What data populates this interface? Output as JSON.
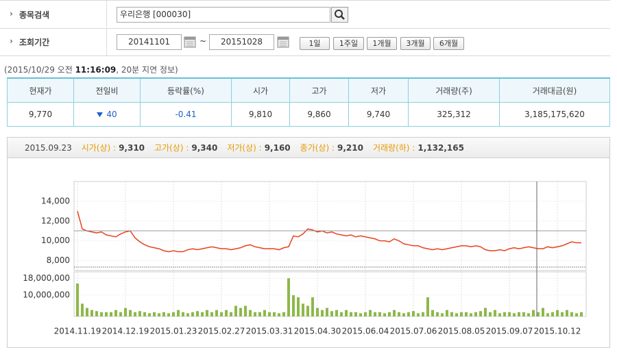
{
  "search": {
    "label": "종목검색",
    "value": "우리은행 [000030]"
  },
  "period": {
    "label": "조회기간",
    "start": "20141101",
    "separator": "~",
    "end": "20151028",
    "buttons": [
      "1일",
      "1주일",
      "1개월",
      "3개월",
      "6개월"
    ]
  },
  "quote_time": {
    "prefix": "(2015/10/29 오전",
    "time": "11:16:09",
    "suffix": ", 20분 지연 정보)"
  },
  "table": {
    "headers": [
      "현재가",
      "전일비",
      "등락률(%)",
      "시가",
      "고가",
      "저가",
      "거래량(주)",
      "거래대금(원)"
    ],
    "rows": [
      [
        "9,770",
        "40",
        "-0.41",
        "9,810",
        "9,860",
        "9,740",
        "325,312",
        "3,185,175,620"
      ]
    ]
  },
  "chart_header": {
    "date": "2015.09.23",
    "items": [
      {
        "label": "시가(상) :",
        "value": "9,310"
      },
      {
        "label": "고가(상) :",
        "value": "9,340"
      },
      {
        "label": "저가(상) :",
        "value": "9,160"
      },
      {
        "label": "종가(상) :",
        "value": "9,210"
      },
      {
        "label": "거래량(하) :",
        "value": "1,132,165"
      }
    ]
  },
  "chart_data": [
    {
      "type": "line",
      "color": "#e8401c",
      "grid": true,
      "categories": [
        "2014.11.19",
        null,
        null,
        null,
        null,
        null,
        null,
        null,
        null,
        null,
        "2014.12.19",
        null,
        null,
        null,
        null,
        null,
        null,
        null,
        null,
        null,
        "2015.01.23",
        null,
        null,
        null,
        null,
        null,
        null,
        null,
        null,
        null,
        "2015.02.27",
        null,
        null,
        null,
        null,
        null,
        null,
        null,
        null,
        null,
        "2015.03.31",
        null,
        null,
        null,
        null,
        null,
        null,
        null,
        null,
        null,
        "2015.04.30",
        null,
        null,
        null,
        null,
        null,
        null,
        null,
        null,
        null,
        "2015.06.04",
        null,
        null,
        null,
        null,
        null,
        null,
        null,
        null,
        null,
        "2015.07.06",
        null,
        null,
        null,
        null,
        null,
        null,
        null,
        null,
        null,
        "2015.08.05",
        null,
        null,
        null,
        null,
        null,
        null,
        null,
        null,
        null,
        "2015.09.07",
        null,
        null,
        null,
        null,
        null,
        null,
        null,
        null,
        null,
        "2015.10.12",
        null,
        null,
        null,
        null,
        null
      ],
      "values": [
        13000,
        11200,
        11000,
        10900,
        10800,
        10900,
        10600,
        10500,
        10400,
        10700,
        10900,
        11000,
        10300,
        9900,
        9600,
        9400,
        9300,
        9200,
        9000,
        8900,
        9000,
        8900,
        8900,
        9100,
        9200,
        9100,
        9200,
        9300,
        9400,
        9300,
        9200,
        9200,
        9100,
        9200,
        9300,
        9500,
        9600,
        9400,
        9300,
        9200,
        9200,
        9200,
        9100,
        9300,
        9400,
        10500,
        10400,
        10700,
        11200,
        11100,
        10900,
        11000,
        10800,
        10900,
        10700,
        10600,
        10500,
        10600,
        10400,
        10500,
        10400,
        10300,
        10200,
        10000,
        10000,
        9900,
        10200,
        10000,
        9700,
        9600,
        9500,
        9500,
        9300,
        9200,
        9100,
        9200,
        9100,
        9200,
        9300,
        9400,
        9500,
        9500,
        9400,
        9500,
        9400,
        9100,
        9000,
        9000,
        9100,
        9000,
        9200,
        9300,
        9200,
        9300,
        9400,
        9300,
        9200,
        9200,
        9400,
        9300,
        9400,
        9500,
        9700,
        9900,
        9800,
        9800
      ],
      "ylim": [
        7000,
        16000
      ],
      "yticks": [
        {
          "value": 8000,
          "label": "8,000"
        },
        {
          "value": 10000,
          "label": "10,000"
        },
        {
          "value": 12000,
          "label": "12,000"
        },
        {
          "value": 14000,
          "label": "14,000"
        }
      ]
    },
    {
      "type": "bar",
      "color": "#8db84a",
      "grid": true,
      "values": [
        15500000,
        6000000,
        4000000,
        3000000,
        2500000,
        2000000,
        2000000,
        2000000,
        3000000,
        2000000,
        4000000,
        3000000,
        2000000,
        2500000,
        2000000,
        1500000,
        2000000,
        1500000,
        2000000,
        1500000,
        2000000,
        3000000,
        2000000,
        1500000,
        2000000,
        2500000,
        2000000,
        3000000,
        2000000,
        3000000,
        2000000,
        3000000,
        2000000,
        5000000,
        4000000,
        5000000,
        3000000,
        2000000,
        2000000,
        3000000,
        2000000,
        2000000,
        1500000,
        2000000,
        18000000,
        10000000,
        9000000,
        6000000,
        5000000,
        9000000,
        4000000,
        3000000,
        4000000,
        2500000,
        3000000,
        2000000,
        3000000,
        2000000,
        2000000,
        1500000,
        2000000,
        3000000,
        2000000,
        2000000,
        1500000,
        2000000,
        3000000,
        2000000,
        1500000,
        2000000,
        2500000,
        1500000,
        2000000,
        9000000,
        3000000,
        2000000,
        1500000,
        3000000,
        2000000,
        1500000,
        2000000,
        2000000,
        1500000,
        2000000,
        2500000,
        4000000,
        2000000,
        3000000,
        1500000,
        2000000,
        2000000,
        1500000,
        2000000,
        2000000,
        1500000,
        3000000,
        2000000,
        4000000,
        1500000,
        2000000,
        3000000,
        2000000,
        3000000,
        2000000,
        1500000,
        2000000
      ],
      "ylim": [
        0,
        21000000
      ],
      "yticks": [
        {
          "value": 10000000,
          "label": "10,000,000"
        },
        {
          "value": 18000000,
          "label": "18,000,000"
        }
      ]
    }
  ]
}
